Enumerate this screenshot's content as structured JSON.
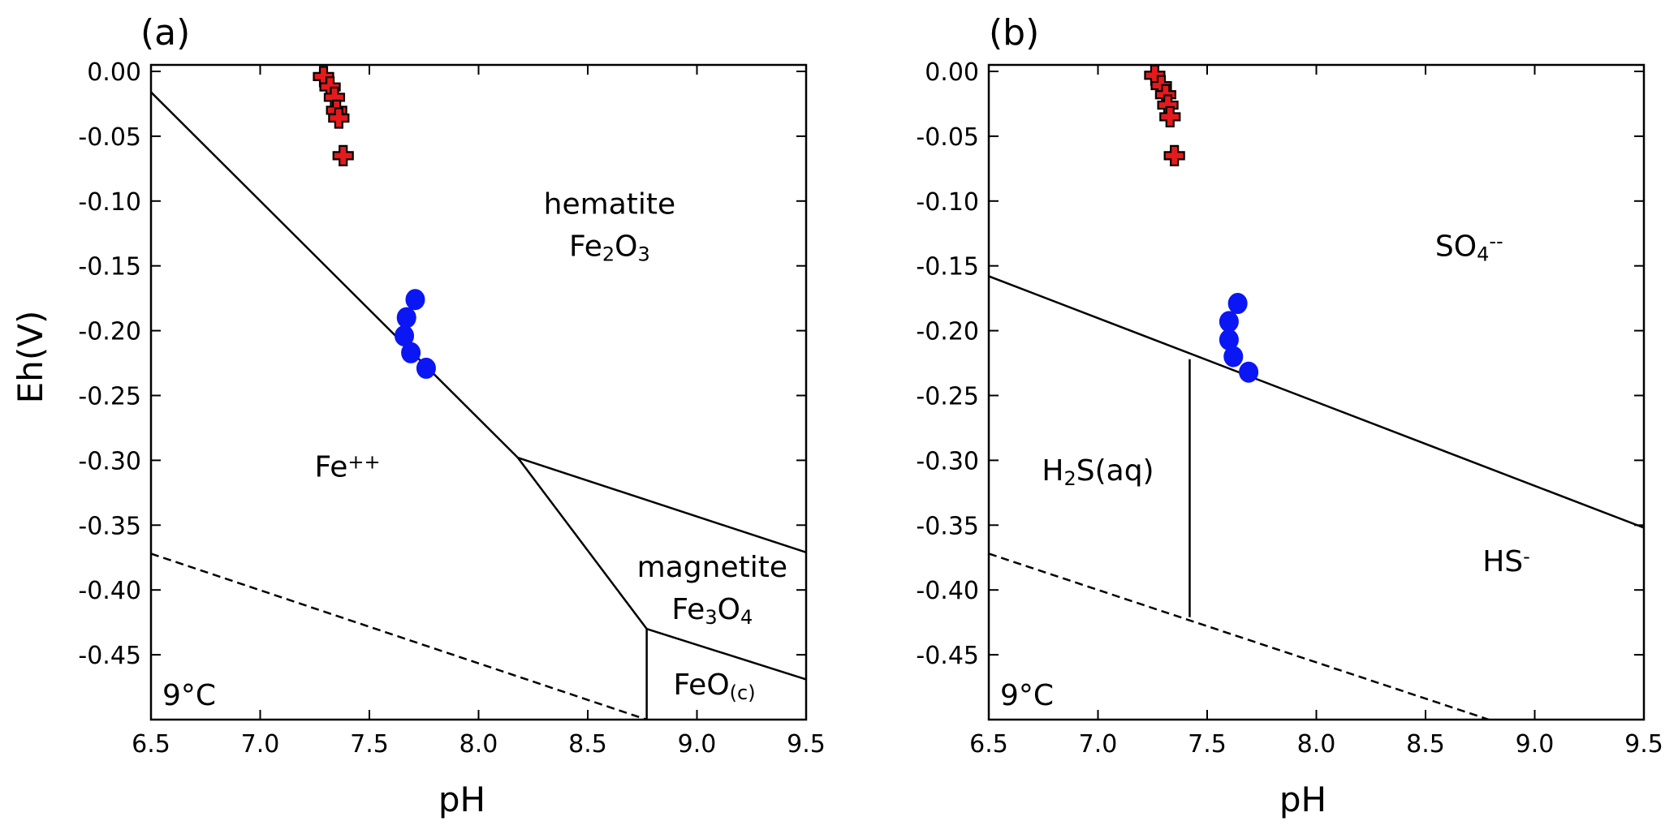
{
  "chart_data": [
    {
      "panel_label": "(a)",
      "type": "line",
      "xlabel": "pH",
      "ylabel": "Eh(V)",
      "xlim": [
        6.5,
        9.5
      ],
      "ylim": [
        -0.5,
        0.005
      ],
      "xticks": [
        "6.5",
        "7.0",
        "7.5",
        "8.0",
        "8.5",
        "9.0",
        "9.5"
      ],
      "yticks": [
        "0.00",
        "-0.05",
        "-0.10",
        "-0.15",
        "-0.20",
        "-0.25",
        "-0.30",
        "-0.35",
        "-0.40",
        "-0.45"
      ],
      "temperature_label": "9°C",
      "regions": [
        {
          "name": "hematite",
          "formula": [
            [
              "Fe",
              ""
            ],
            [
              "2",
              "sub"
            ],
            [
              "O",
              ""
            ],
            [
              "3",
              "sub"
            ]
          ],
          "x": 8.6,
          "y": -0.125
        },
        {
          "name": "",
          "formula": [
            [
              "Fe",
              ""
            ],
            [
              "++",
              "sup"
            ]
          ],
          "x": 7.4,
          "y": -0.305
        },
        {
          "name": "magnetite",
          "formula": [
            [
              "Fe",
              ""
            ],
            [
              "3",
              "sub"
            ],
            [
              "O",
              ""
            ],
            [
              "4",
              "sub"
            ]
          ],
          "x": 9.07,
          "y": -0.405
        },
        {
          "name": "",
          "formula": [
            [
              "FeO",
              ""
            ],
            [
              "(c)",
              "sub"
            ]
          ],
          "x": 9.08,
          "y": -0.473
        }
      ],
      "boundaries": [
        {
          "style": "solid",
          "points": [
            [
              6.5,
              -0.016
            ],
            [
              8.18,
              -0.298
            ]
          ]
        },
        {
          "style": "solid",
          "points": [
            [
              8.18,
              -0.298
            ],
            [
              8.77,
              -0.43
            ]
          ]
        },
        {
          "style": "solid",
          "points": [
            [
              8.18,
              -0.298
            ],
            [
              9.5,
              -0.371
            ]
          ]
        },
        {
          "style": "solid",
          "points": [
            [
              8.77,
              -0.43
            ],
            [
              9.5,
              -0.469
            ]
          ]
        },
        {
          "style": "solid",
          "points": [
            [
              8.77,
              -0.43
            ],
            [
              8.77,
              -0.5
            ]
          ]
        },
        {
          "style": "dashed",
          "points": [
            [
              6.5,
              -0.372
            ],
            [
              8.77,
              -0.5
            ]
          ]
        }
      ],
      "series": [
        {
          "marker": "cross",
          "color": "#e41a1c",
          "points": [
            [
              7.29,
              -0.004
            ],
            [
              7.32,
              -0.012
            ],
            [
              7.34,
              -0.02
            ],
            [
              7.35,
              -0.03
            ],
            [
              7.36,
              -0.036
            ],
            [
              7.38,
              -0.065
            ]
          ]
        },
        {
          "marker": "circle",
          "color": "#0b16f5",
          "points": [
            [
              7.71,
              -0.176
            ],
            [
              7.67,
              -0.19
            ],
            [
              7.66,
              -0.204
            ],
            [
              7.69,
              -0.217
            ],
            [
              7.76,
              -0.229
            ]
          ]
        }
      ]
    },
    {
      "panel_label": "(b)",
      "type": "line",
      "xlabel": "pH",
      "ylabel": "",
      "xlim": [
        6.5,
        9.5
      ],
      "ylim": [
        -0.5,
        0.005
      ],
      "xticks": [
        "6.5",
        "7.0",
        "7.5",
        "8.0",
        "8.5",
        "9.0",
        "9.5"
      ],
      "yticks": [
        "0.00",
        "-0.05",
        "-0.10",
        "-0.15",
        "-0.20",
        "-0.25",
        "-0.30",
        "-0.35",
        "-0.40",
        "-0.45"
      ],
      "temperature_label": "9°C",
      "regions": [
        {
          "name": "",
          "formula": [
            [
              "SO",
              ""
            ],
            [
              "4",
              "sub"
            ],
            [
              "--",
              "sup"
            ]
          ],
          "x": 8.7,
          "y": -0.135
        },
        {
          "name": "",
          "formula": [
            [
              "H",
              ""
            ],
            [
              "2",
              "sub"
            ],
            [
              "S(aq)",
              ""
            ]
          ],
          "x": 7.0,
          "y": -0.308
        },
        {
          "name": "",
          "formula": [
            [
              "HS",
              ""
            ],
            [
              "-",
              "sup"
            ]
          ],
          "x": 8.87,
          "y": -0.378
        }
      ],
      "boundaries": [
        {
          "style": "solid",
          "points": [
            [
              6.5,
              -0.158
            ],
            [
              9.5,
              -0.352
            ]
          ]
        },
        {
          "style": "solid",
          "points": [
            [
              7.42,
              -0.222
            ],
            [
              7.42,
              -0.421
            ]
          ]
        },
        {
          "style": "dashed",
          "points": [
            [
              6.5,
              -0.372
            ],
            [
              8.79,
              -0.5
            ]
          ]
        }
      ],
      "series": [
        {
          "marker": "cross",
          "color": "#e41a1c",
          "points": [
            [
              7.26,
              -0.003
            ],
            [
              7.29,
              -0.011
            ],
            [
              7.31,
              -0.018
            ],
            [
              7.32,
              -0.026
            ],
            [
              7.33,
              -0.035
            ],
            [
              7.35,
              -0.065
            ]
          ]
        },
        {
          "marker": "circle",
          "color": "#0b16f5",
          "points": [
            [
              7.64,
              -0.179
            ],
            [
              7.6,
              -0.193
            ],
            [
              7.6,
              -0.207
            ],
            [
              7.62,
              -0.22
            ],
            [
              7.69,
              -0.232
            ]
          ]
        }
      ]
    }
  ]
}
